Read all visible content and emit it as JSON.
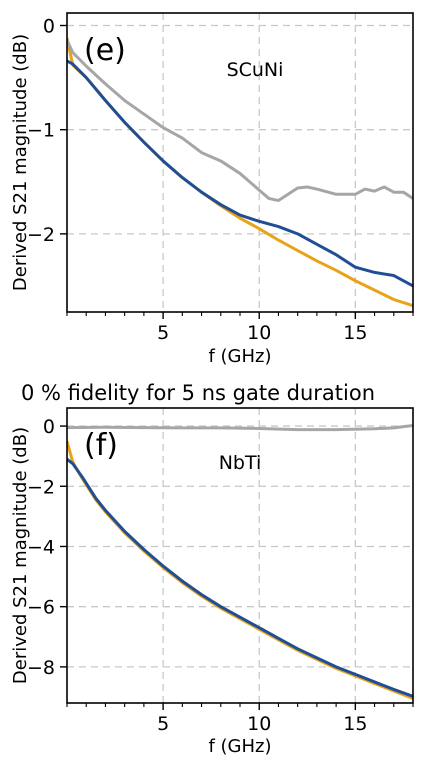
{
  "chart_data": [
    {
      "type": "line",
      "panel_label": "(e)",
      "material": "SCuNi",
      "xlabel": "f (GHz)",
      "ylabel": "Derived S21 magnitude (dB)",
      "xlim": [
        0,
        18
      ],
      "ylim": [
        -2.75,
        0.12
      ],
      "xticks": [
        5,
        10,
        15
      ],
      "xtick_labels": [
        "5",
        "10",
        "15"
      ],
      "yticks": [
        0,
        -1,
        -2
      ],
      "ytick_labels": [
        "0",
        "−1",
        "−2"
      ],
      "grid": true,
      "series": [
        {
          "color": "#e8a317",
          "x": [
            0,
            0.3,
            1,
            2,
            3,
            4,
            5,
            6,
            7,
            8,
            9,
            10,
            11,
            12,
            13,
            14,
            15,
            16,
            17,
            18
          ],
          "y": [
            -0.12,
            -0.38,
            -0.5,
            -0.72,
            -0.93,
            -1.12,
            -1.3,
            -1.46,
            -1.6,
            -1.73,
            -1.85,
            -1.95,
            -2.06,
            -2.16,
            -2.26,
            -2.35,
            -2.45,
            -2.54,
            -2.63,
            -2.69
          ]
        },
        {
          "color": "#1f4e96",
          "x": [
            0,
            0.3,
            1,
            2,
            3,
            4,
            5,
            6,
            7,
            8,
            9,
            10,
            11,
            12,
            13,
            14,
            15,
            16,
            17,
            18
          ],
          "y": [
            -0.34,
            -0.37,
            -0.5,
            -0.72,
            -0.93,
            -1.12,
            -1.3,
            -1.46,
            -1.6,
            -1.72,
            -1.82,
            -1.88,
            -1.93,
            -2.0,
            -2.1,
            -2.2,
            -2.32,
            -2.37,
            -2.4,
            -2.5
          ]
        },
        {
          "color": "#a6a6a6",
          "x": [
            0,
            0.3,
            1,
            2,
            3,
            4,
            5,
            6,
            7,
            8,
            9,
            10,
            10.5,
            11,
            11.5,
            12,
            12.5,
            13,
            14,
            15,
            15.5,
            16,
            16.5,
            17,
            17.5,
            18
          ],
          "y": [
            -0.14,
            -0.26,
            -0.39,
            -0.56,
            -0.72,
            -0.85,
            -0.98,
            -1.08,
            -1.22,
            -1.3,
            -1.42,
            -1.58,
            -1.66,
            -1.68,
            -1.62,
            -1.56,
            -1.55,
            -1.57,
            -1.62,
            -1.62,
            -1.57,
            -1.59,
            -1.55,
            -1.6,
            -1.6,
            -1.66
          ]
        }
      ]
    },
    {
      "type": "line",
      "panel_label": "(f)",
      "material": "NbTi",
      "xlabel": "f (GHz)",
      "ylabel": "Derived S21 magnitude (dB)",
      "xlim": [
        0,
        18
      ],
      "ylim": [
        -9.2,
        0.6
      ],
      "xticks": [
        5,
        10,
        15
      ],
      "xtick_labels": [
        "5",
        "10",
        "15"
      ],
      "yticks": [
        0,
        -2,
        -4,
        -6,
        -8
      ],
      "ytick_labels": [
        "0",
        "−2",
        "−4",
        "−6",
        "−8"
      ],
      "grid": true,
      "series": [
        {
          "color": "#e8a317",
          "x": [
            0,
            0.3,
            0.8,
            1.5,
            2,
            3,
            4,
            5,
            6,
            7,
            8,
            9,
            10,
            11,
            12,
            13,
            14,
            15,
            16,
            17,
            18
          ],
          "y": [
            -0.5,
            -1.2,
            -1.75,
            -2.45,
            -2.85,
            -3.55,
            -4.15,
            -4.7,
            -5.2,
            -5.65,
            -6.05,
            -6.4,
            -6.75,
            -7.1,
            -7.45,
            -7.75,
            -8.05,
            -8.3,
            -8.55,
            -8.8,
            -9.05
          ]
        },
        {
          "color": "#1f4e96",
          "x": [
            0,
            0.3,
            0.8,
            1.5,
            2,
            3,
            4,
            5,
            6,
            7,
            8,
            9,
            10,
            11,
            12,
            13,
            14,
            15,
            16,
            17,
            18
          ],
          "y": [
            -1.1,
            -1.25,
            -1.7,
            -2.4,
            -2.8,
            -3.5,
            -4.1,
            -4.65,
            -5.15,
            -5.6,
            -6.0,
            -6.35,
            -6.7,
            -7.05,
            -7.4,
            -7.7,
            -8.0,
            -8.25,
            -8.5,
            -8.75,
            -8.98
          ]
        },
        {
          "color": "#a6a6a6",
          "x": [
            0,
            2,
            4,
            6,
            8,
            10,
            12,
            14,
            16,
            17,
            18
          ],
          "y": [
            -0.05,
            -0.04,
            -0.05,
            -0.06,
            -0.06,
            -0.08,
            -0.12,
            -0.12,
            -0.09,
            -0.06,
            0.02
          ]
        }
      ]
    }
  ],
  "middle_title": "0 % fidelity for 5 ns gate duration"
}
